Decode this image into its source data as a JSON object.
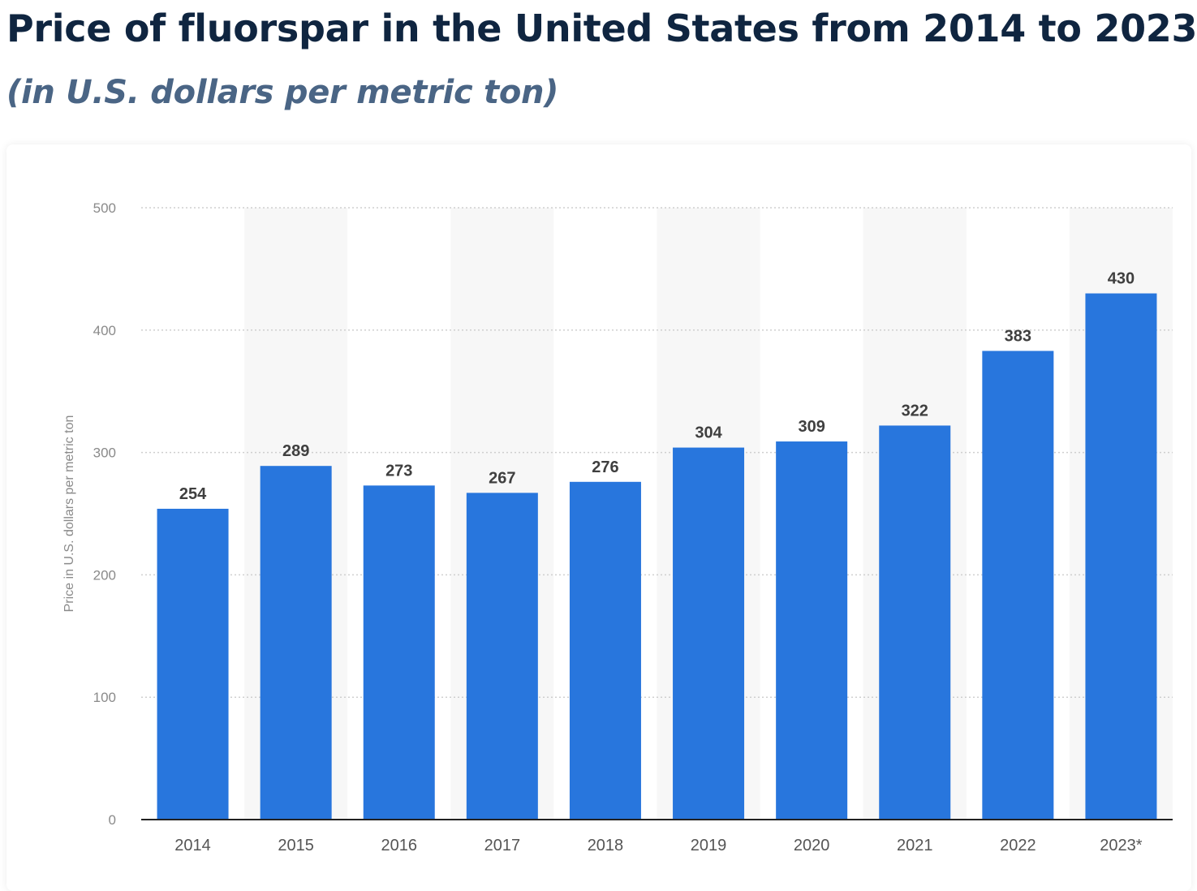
{
  "chart_data": {
    "type": "bar",
    "title": "Price of fluorspar in the United States from 2014 to 2023",
    "subtitle": "(in U.S. dollars per metric ton)",
    "categories": [
      "2014",
      "2015",
      "2016",
      "2017",
      "2018",
      "2019",
      "2020",
      "2021",
      "2022",
      "2023*"
    ],
    "values": [
      254,
      289,
      273,
      267,
      276,
      304,
      309,
      322,
      383,
      430
    ],
    "ylabel": "Price in U.S. dollars per metric ton",
    "xlabel": "",
    "ylim": [
      0,
      500
    ],
    "yticks": [
      0,
      100,
      200,
      300,
      400,
      500
    ],
    "grid": true,
    "data_labels": true,
    "colors": {
      "bar": "#2876dd",
      "grid": "#cfcfcf",
      "alternate_band": "#f7f7f7",
      "axis": "#222222",
      "title": "#0f2540",
      "subtitle": "#4a6585"
    }
  }
}
